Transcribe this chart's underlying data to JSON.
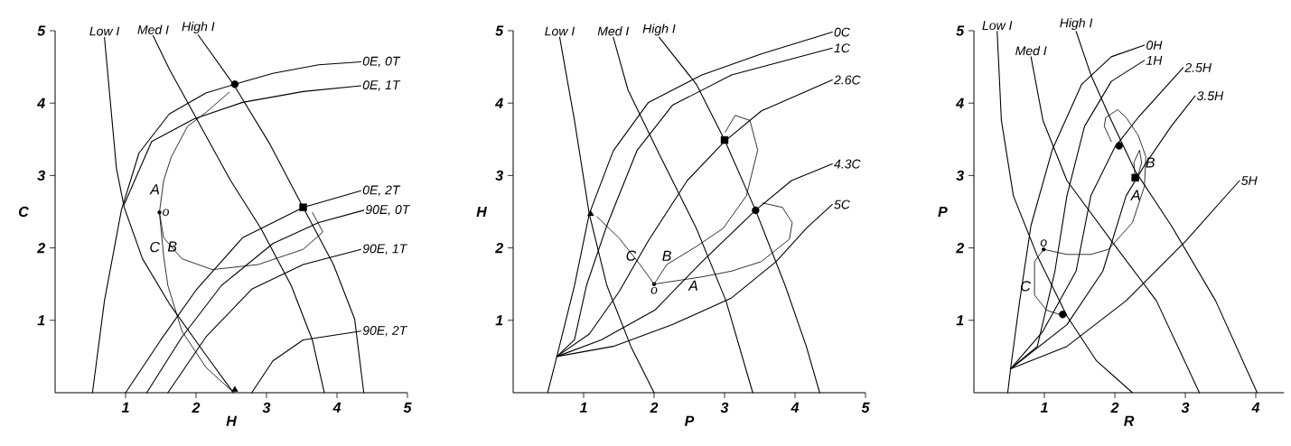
{
  "chart_data": [
    {
      "type": "line",
      "xlabel": "H",
      "ylabel": "C",
      "xlim": [
        0,
        5
      ],
      "ylim": [
        0,
        5
      ],
      "xticks": [
        1,
        2,
        3,
        4,
        5
      ],
      "yticks": [
        1,
        2,
        3,
        4,
        5
      ],
      "series": [
        {
          "name": "Low I",
          "color": "#000000",
          "x": [
            0.7,
            0.87,
            0.98,
            1.24,
            1.62,
            2.14,
            2.53
          ],
          "values": [
            4.91,
            3.1,
            2.56,
            1.85,
            1.23,
            0.52,
            0
          ]
        },
        {
          "name": "Med I",
          "color": "#000000",
          "x": [
            1.39,
            1.62,
            1.97,
            2.49,
            2.92,
            3.35,
            3.65,
            3.82
          ],
          "values": [
            4.93,
            4.47,
            3.85,
            2.93,
            2.27,
            1.48,
            0.73,
            0
          ]
        },
        {
          "name": "High I",
          "color": "#000000",
          "x": [
            2.03,
            2.53,
            3.05,
            3.52,
            3.95,
            4.25,
            4.38
          ],
          "values": [
            4.94,
            4.26,
            3.43,
            2.56,
            1.77,
            1.02,
            0
          ]
        },
        {
          "name": "0E, 0T",
          "color": "#000000",
          "x": [
            0.53,
            0.7,
            0.94,
            1.19,
            1.62,
            2.14,
            2.55,
            3.09,
            3.74,
            4.34
          ],
          "values": [
            0,
            1.27,
            2.52,
            3.31,
            3.85,
            4.14,
            4.26,
            4.41,
            4.53,
            4.57
          ]
        },
        {
          "name": "0E, 1T",
          "color": "#000000",
          "x": [
            0.98,
            1.37,
            1.97,
            2.66,
            3.52,
            4.34
          ],
          "values": [
            2.6,
            3.47,
            3.78,
            4.01,
            4.16,
            4.24
          ]
        },
        {
          "name": "0E, 2T",
          "color": "#000000",
          "x": [
            1.0,
            1.5,
            2.01,
            2.66,
            3.52,
            4.34
          ],
          "values": [
            0,
            0.73,
            1.43,
            2.14,
            2.56,
            2.79
          ]
        },
        {
          "name": "90E, 0T",
          "color": "#000000",
          "x": [
            1.3,
            1.8,
            2.36,
            3.09,
            3.74,
            4.38
          ],
          "values": [
            0,
            0.77,
            1.48,
            2.06,
            2.35,
            2.52
          ]
        },
        {
          "name": "90E, 1T",
          "color": "#000000",
          "x": [
            1.6,
            2.14,
            2.79,
            3.52,
            4.34
          ],
          "values": [
            0,
            0.77,
            1.43,
            1.77,
            1.98
          ]
        },
        {
          "name": "90E, 2T",
          "color": "#000000",
          "x": [
            2.79,
            3.09,
            3.52,
            4.34
          ],
          "values": [
            0,
            0.44,
            0.73,
            0.85
          ]
        },
        {
          "name": "A",
          "color": "#000000",
          "x": [
            1.48,
            1.54,
            1.65,
            1.88,
            2.14,
            2.47
          ],
          "values": [
            2.49,
            2.93,
            3.26,
            3.68,
            3.87,
            4.15
          ]
        },
        {
          "name": "B",
          "color": "#000000",
          "x": [
            1.48,
            1.54,
            1.8,
            2.23,
            2.88,
            3.52,
            3.8,
            3.65
          ],
          "values": [
            2.49,
            2.14,
            1.85,
            1.7,
            1.77,
            1.98,
            2.22,
            2.49
          ]
        },
        {
          "name": "C",
          "color": "#000000",
          "x": [
            1.48,
            1.54,
            1.6,
            1.8,
            2.14,
            2.49
          ],
          "values": [
            2.49,
            1.89,
            1.48,
            0.85,
            0.35,
            0.04
          ]
        },
        {
          "type": "scatter",
          "marker": "circle",
          "color": "#000000",
          "x": [
            2.55
          ],
          "values": [
            4.26
          ]
        },
        {
          "type": "scatter",
          "marker": "square",
          "color": "#000000",
          "x": [
            3.52
          ],
          "values": [
            2.56
          ]
        },
        {
          "type": "scatter",
          "marker": "triangle",
          "color": "#000000",
          "x": [
            2.55
          ],
          "values": [
            0.04
          ]
        }
      ],
      "annotations": [
        {
          "text": "o",
          "x": 1.48,
          "y": 2.49
        }
      ]
    },
    {
      "type": "line",
      "xlabel": "P",
      "ylabel": "H",
      "xlim": [
        0,
        5
      ],
      "ylim": [
        0,
        5
      ],
      "xticks": [
        1,
        2,
        3,
        4,
        5
      ],
      "yticks": [
        1,
        2,
        3,
        4,
        5
      ],
      "series": [
        {
          "name": "Low I",
          "color": "#000000",
          "x": [
            0.66,
            0.87,
            1.08,
            1.33,
            1.67,
            2.0
          ],
          "values": [
            4.91,
            3.76,
            2.47,
            1.48,
            0.64,
            0
          ]
        },
        {
          "name": "Med I",
          "color": "#000000",
          "x": [
            1.42,
            1.63,
            2.09,
            2.6,
            3.02,
            3.4
          ],
          "values": [
            4.91,
            4.18,
            3.26,
            2.27,
            1.27,
            0
          ]
        },
        {
          "name": "High I",
          "color": "#000000",
          "x": [
            2.07,
            2.6,
            3.0,
            3.44,
            3.86,
            4.16,
            4.35
          ],
          "values": [
            4.91,
            4.26,
            3.49,
            2.52,
            1.48,
            0.64,
            0
          ]
        },
        {
          "name": "0C",
          "color": "#000000",
          "x": [
            0.49,
            0.62,
            0.87,
            1.08,
            1.42,
            1.92,
            2.68,
            3.52,
            4.53
          ],
          "values": [
            0,
            0.5,
            1.48,
            2.47,
            3.34,
            4.01,
            4.39,
            4.68,
            4.98
          ]
        },
        {
          "name": "1C",
          "color": "#000000",
          "x": [
            0.62,
            0.87,
            1.04,
            1.33,
            1.76,
            2.26,
            3.1,
            4.53
          ],
          "values": [
            0.5,
            0.73,
            1.48,
            2.31,
            3.35,
            3.97,
            4.39,
            4.76
          ]
        },
        {
          "name": "2.6C",
          "color": "#000000",
          "x": [
            0.62,
            1.08,
            1.5,
            1.92,
            2.47,
            3.0,
            3.52,
            4.53
          ],
          "values": [
            0.5,
            0.81,
            1.39,
            2.1,
            2.93,
            3.47,
            3.89,
            4.32
          ]
        },
        {
          "name": "4.3C",
          "color": "#000000",
          "x": [
            0.62,
            1.25,
            2.01,
            2.68,
            3.44,
            3.95,
            4.53
          ],
          "values": [
            0.5,
            0.73,
            1.14,
            1.81,
            2.52,
            2.93,
            3.16
          ]
        },
        {
          "name": "5C",
          "color": "#000000",
          "x": [
            0.62,
            1.42,
            2.26,
            3.1,
            3.73,
            4.16,
            4.53
          ],
          "values": [
            0.5,
            0.64,
            0.94,
            1.31,
            1.81,
            2.27,
            2.6
          ]
        },
        {
          "name": "A",
          "color": "#000000",
          "x": [
            2.0,
            2.68,
            3.1,
            3.52,
            3.92,
            3.96,
            3.82,
            3.54
          ],
          "values": [
            1.5,
            1.6,
            1.68,
            1.81,
            2.12,
            2.35,
            2.56,
            2.62
          ]
        },
        {
          "name": "B",
          "color": "#000000",
          "x": [
            2.0,
            2.18,
            2.6,
            2.98,
            3.31,
            3.47,
            3.36,
            3.15,
            3.01
          ],
          "values": [
            1.5,
            1.77,
            2.02,
            2.27,
            2.72,
            3.35,
            3.76,
            3.83,
            3.6
          ]
        },
        {
          "name": "C",
          "color": "#000000",
          "x": [
            2.0,
            1.8,
            1.5,
            1.19
          ],
          "values": [
            1.5,
            1.77,
            2.14,
            2.43
          ]
        },
        {
          "type": "scatter",
          "marker": "triangle",
          "color": "#000000",
          "x": [
            1.1
          ],
          "values": [
            2.47
          ]
        },
        {
          "type": "scatter",
          "marker": "square",
          "color": "#000000",
          "x": [
            3.0
          ],
          "values": [
            3.49
          ]
        },
        {
          "type": "scatter",
          "marker": "circle",
          "color": "#000000",
          "x": [
            3.44
          ],
          "values": [
            2.52
          ]
        }
      ],
      "annotations": [
        {
          "text": "o",
          "x": 2.0,
          "y": 1.5
        }
      ]
    },
    {
      "type": "line",
      "xlabel": "R",
      "ylabel": "P",
      "xlim": [
        0,
        4.4
      ],
      "ylim": [
        0,
        5
      ],
      "xticks": [
        1,
        2,
        3,
        4
      ],
      "yticks": [
        1,
        2,
        3,
        4,
        5
      ],
      "series": [
        {
          "name": "Low I",
          "color": "#000000",
          "x": [
            0.33,
            0.39,
            0.56,
            0.9,
            1.32,
            1.74,
            2.25
          ],
          "values": [
            4.99,
            3.76,
            2.72,
            1.89,
            1.06,
            0.44,
            0
          ]
        },
        {
          "name": "Med I",
          "color": "#000000",
          "x": [
            0.81,
            0.98,
            1.32,
            1.95,
            2.59,
            3.2
          ],
          "values": [
            4.64,
            3.76,
            2.93,
            2.1,
            1.27,
            0
          ]
        },
        {
          "name": "High I",
          "color": "#000000",
          "x": [
            1.45,
            1.66,
            1.95,
            2.29,
            2.8,
            3.43,
            4.02
          ],
          "values": [
            4.99,
            4.39,
            3.76,
            3.06,
            2.31,
            1.27,
            0
          ]
        },
        {
          "name": "0H",
          "color": "#000000",
          "x": [
            0.48,
            0.52,
            0.65,
            0.81,
            1.11,
            1.53,
            1.95,
            2.42
          ],
          "values": [
            0,
            0.33,
            1.27,
            2.31,
            3.35,
            4.26,
            4.64,
            4.8
          ]
        },
        {
          "name": "1H",
          "color": "#000000",
          "x": [
            0.52,
            0.9,
            1.15,
            1.32,
            1.57,
            1.95,
            2.42
          ],
          "values": [
            0.33,
            0.64,
            1.68,
            2.72,
            3.68,
            4.3,
            4.59
          ]
        },
        {
          "name": "2.5H",
          "color": "#000000",
          "x": [
            0.52,
            0.98,
            1.45,
            1.66,
            2.0,
            2.33,
            2.97
          ],
          "values": [
            0.33,
            0.85,
            1.68,
            2.72,
            3.39,
            3.8,
            4.49
          ]
        },
        {
          "name": "3.5H",
          "color": "#000000",
          "x": [
            0.52,
            1.32,
            1.83,
            2.16,
            2.42,
            2.8,
            3.14
          ],
          "values": [
            0.33,
            0.94,
            1.68,
            2.72,
            3.14,
            3.68,
            4.1
          ]
        },
        {
          "name": "5H",
          "color": "#000000",
          "x": [
            0.52,
            1.32,
            2.16,
            3.01,
            3.77
          ],
          "values": [
            0.33,
            0.64,
            1.27,
            2.1,
            2.93
          ]
        },
        {
          "name": "A",
          "color": "#000000",
          "x": [
            0.99,
            1.32,
            1.66,
            1.91,
            2.25,
            2.42,
            2.44,
            2.33,
            2.16,
            2.04,
            1.87,
            1.85,
            1.95
          ],
          "values": [
            1.98,
            1.91,
            1.91,
            1.98,
            2.35,
            2.85,
            3.26,
            3.56,
            3.8,
            3.91,
            3.8,
            3.68,
            3.47
          ]
        },
        {
          "name": "B",
          "color": "#000000",
          "x": [
            2.29,
            2.27,
            2.35,
            2.38,
            2.33
          ],
          "values": [
            2.95,
            3.18,
            3.35,
            3.18,
            3.0
          ]
        },
        {
          "name": "C",
          "color": "#000000",
          "x": [
            0.99,
            0.86,
            0.86,
            1.03,
            1.28
          ],
          "values": [
            1.98,
            1.81,
            1.35,
            1.14,
            1.06
          ]
        },
        {
          "type": "scatter",
          "marker": "circle",
          "color": "#000000",
          "x": [
            2.06
          ],
          "values": [
            3.41
          ]
        },
        {
          "type": "scatter",
          "marker": "square",
          "color": "#000000",
          "x": [
            2.29
          ],
          "values": [
            2.97
          ]
        },
        {
          "type": "scatter",
          "marker": "circle",
          "color": "#000000",
          "x": [
            1.26
          ],
          "values": [
            1.08
          ]
        }
      ],
      "annotations": [
        {
          "text": "o",
          "x": 0.99,
          "y": 1.98
        }
      ]
    }
  ]
}
